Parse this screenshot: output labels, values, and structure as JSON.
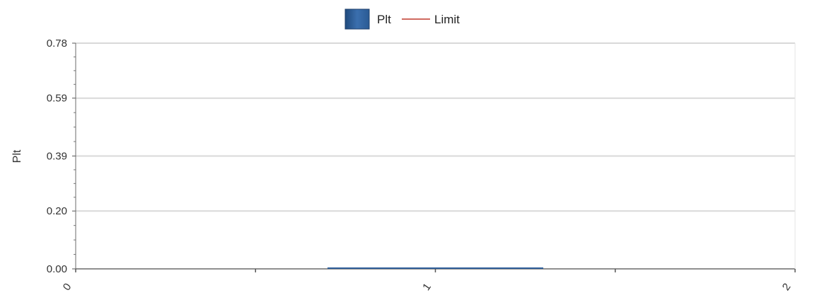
{
  "chart_data": {
    "type": "bar",
    "title": "",
    "xlabel": "",
    "ylabel": "Plt",
    "xlim": [
      0,
      2
    ],
    "ylim": [
      0,
      0.78
    ],
    "x_ticks": [
      "0",
      "1",
      "2"
    ],
    "y_ticks": [
      "0.00",
      "0.20",
      "0.39",
      "0.59",
      "0.78"
    ],
    "y_tick_values": [
      0.0,
      0.2,
      0.39,
      0.59,
      0.78
    ],
    "grid": true,
    "legend_position": "top-center",
    "series": [
      {
        "name": "Plt",
        "type": "bar",
        "color": "#2f5f9a",
        "x": [
          1
        ],
        "values": [
          0.0
        ]
      },
      {
        "name": "Limit",
        "type": "line",
        "color": "#c0392b",
        "x": [],
        "values": []
      }
    ]
  }
}
